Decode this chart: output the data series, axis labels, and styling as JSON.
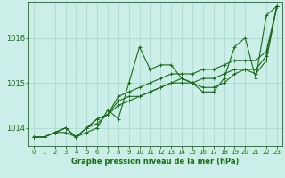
{
  "title": "Graphe pression niveau de la mer (hPa)",
  "background_color": "#cceee8",
  "grid_color": "#aaddcc",
  "line_color": "#1a6b1a",
  "xlim": [
    -0.5,
    23.5
  ],
  "ylim": [
    1013.6,
    1016.8
  ],
  "yticks": [
    1014,
    1015,
    1016
  ],
  "xticks": [
    0,
    1,
    2,
    3,
    4,
    5,
    6,
    7,
    8,
    9,
    10,
    11,
    12,
    13,
    14,
    15,
    16,
    17,
    18,
    19,
    20,
    21,
    22,
    23
  ],
  "series": [
    [
      1013.8,
      1013.8,
      1013.9,
      1013.9,
      1013.8,
      1013.9,
      1014.0,
      1014.4,
      1014.2,
      1015.0,
      1015.8,
      1015.3,
      1015.4,
      1015.4,
      1015.1,
      1015.0,
      1014.8,
      1014.8,
      1015.1,
      1015.8,
      1016.0,
      1015.1,
      1016.5,
      1016.7
    ],
    [
      1013.8,
      1013.8,
      1013.9,
      1014.0,
      1013.8,
      1014.0,
      1014.2,
      1014.3,
      1014.7,
      1014.8,
      1014.9,
      1015.0,
      1015.1,
      1015.2,
      1015.2,
      1015.2,
      1015.3,
      1015.3,
      1015.4,
      1015.5,
      1015.5,
      1015.5,
      1015.7,
      1016.7
    ],
    [
      1013.8,
      1013.8,
      1013.9,
      1014.0,
      1013.8,
      1014.0,
      1014.2,
      1014.3,
      1014.6,
      1014.7,
      1014.7,
      1014.8,
      1014.9,
      1015.0,
      1015.0,
      1015.0,
      1015.1,
      1015.1,
      1015.2,
      1015.3,
      1015.3,
      1015.3,
      1015.6,
      1016.7
    ],
    [
      1013.8,
      1013.8,
      1013.9,
      1014.0,
      1013.8,
      1014.0,
      1014.1,
      1014.3,
      1014.5,
      1014.6,
      1014.7,
      1014.8,
      1014.9,
      1015.0,
      1015.1,
      1015.0,
      1014.9,
      1014.9,
      1015.0,
      1015.2,
      1015.3,
      1015.2,
      1015.5,
      1016.7
    ]
  ],
  "title_fontsize": 6.0,
  "tick_fontsize": 5.0,
  "ylabel_fontsize": 6.0,
  "lw": 0.8,
  "marker_size": 3.0
}
